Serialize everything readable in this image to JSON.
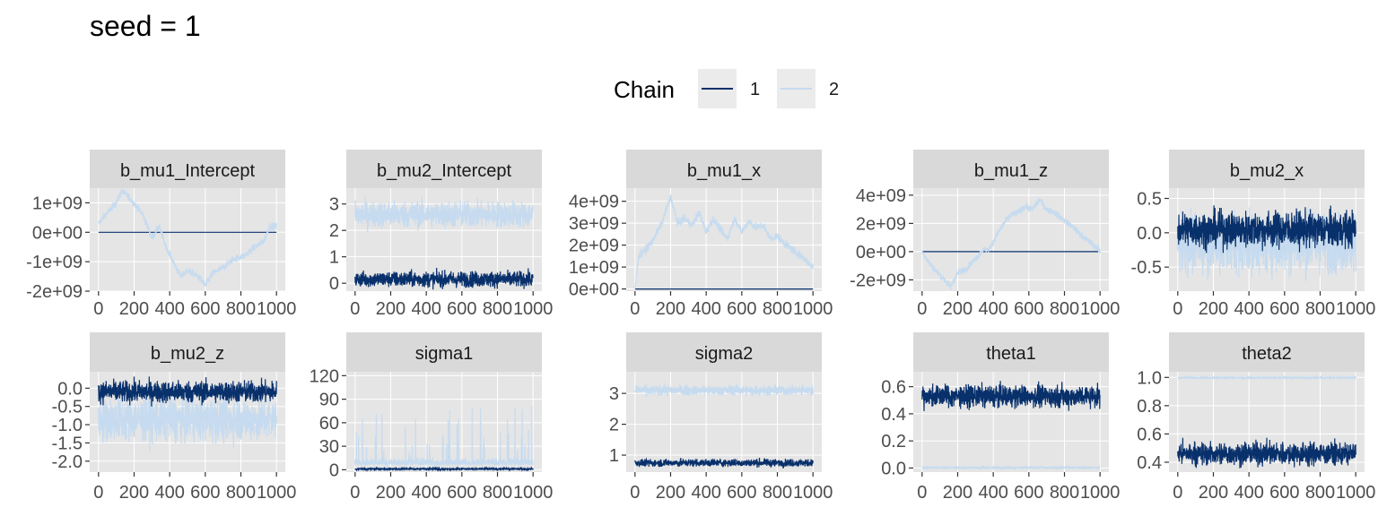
{
  "title": "seed = 1",
  "legend": {
    "title": "Chain",
    "entries": [
      {
        "label": "1",
        "color": "#08306b"
      },
      {
        "label": "2",
        "color": "#c6dbef"
      }
    ]
  },
  "colors": {
    "panel_background": "#e5e5e5",
    "strip_background": "#d9d9d9",
    "gridline": "#ffffff",
    "chain1": "#08306b",
    "chain2": "#c6dbef"
  },
  "chart_data": [
    {
      "type": "line",
      "title": "b_mu1_Intercept",
      "xlim": [
        0,
        1000
      ],
      "ylim": [
        -2000000000,
        1500000000
      ],
      "x_ticks": [
        0,
        200,
        400,
        600,
        800,
        1000
      ],
      "x_tick_labels": [
        "0",
        "200",
        "400",
        "600",
        "800",
        "1000"
      ],
      "y_ticks": [
        -2000000000,
        -1000000000,
        0,
        1000000000
      ],
      "y_tick_labels": [
        "-2e+09",
        "-1e+09",
        "0e+00",
        "1e+09"
      ],
      "series": [
        {
          "name": "1",
          "kind": "flat",
          "level": 0,
          "noise": 0,
          "points": []
        },
        {
          "name": "2",
          "kind": "walk",
          "noise": 20000000,
          "points": [
            [
              0,
              300000000
            ],
            [
              40,
              600000000
            ],
            [
              100,
              1000000000
            ],
            [
              130,
              1400000000
            ],
            [
              170,
              1200000000
            ],
            [
              210,
              900000000
            ],
            [
              250,
              600000000
            ],
            [
              300,
              -200000000
            ],
            [
              340,
              200000000
            ],
            [
              380,
              -500000000
            ],
            [
              420,
              -1000000000
            ],
            [
              460,
              -1500000000
            ],
            [
              500,
              -1300000000
            ],
            [
              560,
              -1500000000
            ],
            [
              600,
              -1800000000
            ],
            [
              640,
              -1400000000
            ],
            [
              700,
              -1200000000
            ],
            [
              760,
              -900000000
            ],
            [
              820,
              -800000000
            ],
            [
              880,
              -500000000
            ],
            [
              930,
              -300000000
            ],
            [
              960,
              200000000
            ],
            [
              1000,
              200000000
            ]
          ]
        }
      ]
    },
    {
      "type": "line",
      "title": "b_mu2_Intercept",
      "xlim": [
        0,
        1000
      ],
      "ylim": [
        -0.3,
        3.6
      ],
      "x_ticks": [
        0,
        200,
        400,
        600,
        800,
        1000
      ],
      "x_tick_labels": [
        "0",
        "200",
        "400",
        "600",
        "800",
        "1000"
      ],
      "y_ticks": [
        0,
        1,
        2,
        3
      ],
      "y_tick_labels": [
        "0",
        "1",
        "2",
        "3"
      ],
      "series": [
        {
          "name": "1",
          "kind": "noise",
          "level": 0.15,
          "noise": 0.15,
          "points": []
        },
        {
          "name": "2",
          "kind": "noise",
          "level": 2.6,
          "noise": 0.25,
          "points": []
        }
      ]
    },
    {
      "type": "line",
      "title": "b_mu1_x",
      "xlim": [
        0,
        1000
      ],
      "ylim": [
        -100000000,
        4600000000
      ],
      "x_ticks": [
        0,
        200,
        400,
        600,
        800,
        1000
      ],
      "x_tick_labels": [
        "0",
        "200",
        "400",
        "600",
        "800",
        "1000"
      ],
      "y_ticks": [
        0,
        1000000000,
        2000000000,
        3000000000,
        4000000000
      ],
      "y_tick_labels": [
        "0e+00",
        "1e+09",
        "2e+09",
        "3e+09",
        "4e+09"
      ],
      "series": [
        {
          "name": "1",
          "kind": "flat",
          "level": 0,
          "noise": 0,
          "points": []
        },
        {
          "name": "2",
          "kind": "walk",
          "noise": 30000000,
          "points": [
            [
              0,
              0
            ],
            [
              20,
              1500000000
            ],
            [
              60,
              1800000000
            ],
            [
              100,
              2200000000
            ],
            [
              150,
              3000000000
            ],
            [
              200,
              4200000000
            ],
            [
              240,
              3000000000
            ],
            [
              280,
              3200000000
            ],
            [
              320,
              2900000000
            ],
            [
              360,
              3500000000
            ],
            [
              400,
              2600000000
            ],
            [
              440,
              3200000000
            ],
            [
              480,
              2700000000
            ],
            [
              520,
              2300000000
            ],
            [
              560,
              3200000000
            ],
            [
              600,
              2600000000
            ],
            [
              640,
              3100000000
            ],
            [
              680,
              2800000000
            ],
            [
              720,
              2900000000
            ],
            [
              760,
              2300000000
            ],
            [
              800,
              2400000000
            ],
            [
              850,
              2000000000
            ],
            [
              900,
              1700000000
            ],
            [
              950,
              1400000000
            ],
            [
              1000,
              1000000000
            ]
          ]
        }
      ]
    },
    {
      "type": "line",
      "title": "b_mu1_z",
      "xlim": [
        0,
        1000
      ],
      "ylim": [
        -2800000000,
        4500000000
      ],
      "x_ticks": [
        0,
        200,
        400,
        600,
        800,
        1000
      ],
      "x_tick_labels": [
        "0",
        "200",
        "400",
        "600",
        "800",
        "1000"
      ],
      "y_ticks": [
        -2000000000,
        0,
        2000000000,
        4000000000
      ],
      "y_tick_labels": [
        "-2e+09",
        "0e+00",
        "2e+09",
        "4e+09"
      ],
      "series": [
        {
          "name": "1",
          "kind": "flat",
          "level": 0,
          "noise": 0,
          "points": []
        },
        {
          "name": "2",
          "kind": "walk",
          "noise": 40000000,
          "points": [
            [
              0,
              0
            ],
            [
              40,
              -800000000
            ],
            [
              80,
              -1400000000
            ],
            [
              120,
              -1900000000
            ],
            [
              160,
              -2500000000
            ],
            [
              200,
              -1500000000
            ],
            [
              250,
              -1200000000
            ],
            [
              300,
              -500000000
            ],
            [
              340,
              100000000
            ],
            [
              380,
              200000000
            ],
            [
              420,
              1200000000
            ],
            [
              460,
              2000000000
            ],
            [
              500,
              2600000000
            ],
            [
              540,
              2800000000
            ],
            [
              580,
              3200000000
            ],
            [
              620,
              3000000000
            ],
            [
              660,
              3700000000
            ],
            [
              700,
              3000000000
            ],
            [
              740,
              2800000000
            ],
            [
              780,
              2400000000
            ],
            [
              820,
              2000000000
            ],
            [
              860,
              1600000000
            ],
            [
              900,
              1100000000
            ],
            [
              940,
              700000000
            ],
            [
              980,
              300000000
            ],
            [
              1000,
              0
            ]
          ]
        }
      ]
    },
    {
      "type": "line",
      "title": "b_mu2_x",
      "xlim": [
        0,
        1000
      ],
      "ylim": [
        -0.85,
        0.65
      ],
      "x_ticks": [
        0,
        200,
        400,
        600,
        800,
        1000
      ],
      "x_tick_labels": [
        "0",
        "200",
        "400",
        "600",
        "800",
        "1000"
      ],
      "y_ticks": [
        -0.5,
        0,
        0.5
      ],
      "y_tick_labels": [
        "-0.5",
        "0.0",
        "0.5"
      ],
      "series": [
        {
          "name": "1",
          "kind": "noise",
          "level": 0.05,
          "noise": 0.13,
          "points": []
        },
        {
          "name": "2",
          "kind": "noise",
          "level": -0.15,
          "noise": 0.22,
          "points": []
        }
      ]
    },
    {
      "type": "line",
      "title": "b_mu2_z",
      "xlim": [
        0,
        1000
      ],
      "ylim": [
        -2.3,
        0.45
      ],
      "x_ticks": [
        0,
        200,
        400,
        600,
        800,
        1000
      ],
      "x_tick_labels": [
        "0",
        "200",
        "400",
        "600",
        "800",
        "1000"
      ],
      "y_ticks": [
        -2,
        -1.5,
        -1,
        -0.5,
        0
      ],
      "y_tick_labels": [
        "-2.0",
        "-1.5",
        "-1.0",
        "-0.5",
        "0.0"
      ],
      "series": [
        {
          "name": "1",
          "kind": "noise",
          "level": -0.1,
          "noise": 0.15,
          "points": []
        },
        {
          "name": "2",
          "kind": "noise",
          "level": -0.85,
          "noise": 0.3,
          "points": []
        }
      ]
    },
    {
      "type": "line",
      "title": "sigma1",
      "xlim": [
        0,
        1000
      ],
      "ylim": [
        -3,
        125
      ],
      "x_ticks": [
        0,
        200,
        400,
        600,
        800,
        1000
      ],
      "x_tick_labels": [
        "0",
        "200",
        "400",
        "600",
        "800",
        "1000"
      ],
      "y_ticks": [
        0,
        30,
        60,
        90,
        120
      ],
      "y_tick_labels": [
        "0",
        "30",
        "60",
        "90",
        "120"
      ],
      "series": [
        {
          "name": "1",
          "kind": "noise",
          "level": 1,
          "noise": 0.6,
          "points": []
        },
        {
          "name": "2",
          "kind": "spiky",
          "level": 6,
          "noise": 4,
          "points": []
        }
      ]
    },
    {
      "type": "line",
      "title": "sigma2",
      "xlim": [
        0,
        1000
      ],
      "ylim": [
        0.45,
        3.7
      ],
      "x_ticks": [
        0,
        200,
        400,
        600,
        800,
        1000
      ],
      "x_tick_labels": [
        "0",
        "200",
        "400",
        "600",
        "800",
        "1000"
      ],
      "y_ticks": [
        1,
        2,
        3
      ],
      "y_tick_labels": [
        "1",
        "2",
        "3"
      ],
      "series": [
        {
          "name": "1",
          "kind": "noise",
          "level": 0.75,
          "noise": 0.06,
          "points": []
        },
        {
          "name": "2",
          "kind": "noise",
          "level": 3.1,
          "noise": 0.08,
          "points": []
        }
      ]
    },
    {
      "type": "line",
      "title": "theta1",
      "xlim": [
        0,
        1000
      ],
      "ylim": [
        -0.03,
        0.71
      ],
      "x_ticks": [
        0,
        200,
        400,
        600,
        800,
        1000
      ],
      "x_tick_labels": [
        "0",
        "200",
        "400",
        "600",
        "800",
        "1000"
      ],
      "y_ticks": [
        0,
        0.2,
        0.4,
        0.6
      ],
      "y_tick_labels": [
        "0.0",
        "0.2",
        "0.4",
        "0.6"
      ],
      "series": [
        {
          "name": "1",
          "kind": "noise",
          "level": 0.53,
          "noise": 0.04,
          "points": []
        },
        {
          "name": "2",
          "kind": "noise",
          "level": 0.003,
          "noise": 0.003,
          "points": []
        }
      ]
    },
    {
      "type": "line",
      "title": "theta2",
      "xlim": [
        0,
        1000
      ],
      "ylim": [
        0.33,
        1.04
      ],
      "x_ticks": [
        0,
        200,
        400,
        600,
        800,
        1000
      ],
      "x_tick_labels": [
        "0",
        "200",
        "400",
        "600",
        "800",
        "1000"
      ],
      "y_ticks": [
        0.4,
        0.6,
        0.8,
        1.0
      ],
      "y_tick_labels": [
        "0.4",
        "0.6",
        "0.8",
        "1.0"
      ],
      "series": [
        {
          "name": "1",
          "kind": "noise",
          "level": 0.46,
          "noise": 0.04,
          "points": []
        },
        {
          "name": "2",
          "kind": "noise",
          "level": 0.998,
          "noise": 0.002,
          "points": []
        }
      ]
    }
  ]
}
